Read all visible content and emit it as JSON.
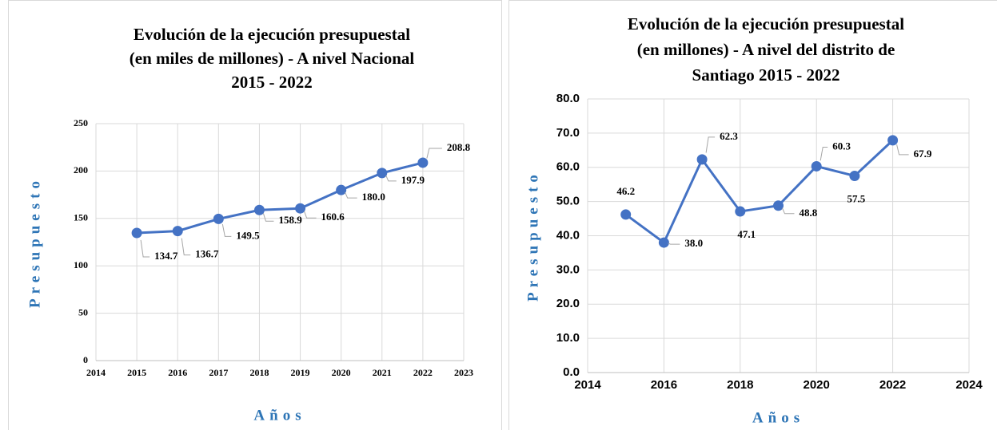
{
  "chart_data": [
    {
      "type": "line",
      "title": [
        "Evolución de la ejecución presupuestal",
        "(en miles de millones) - A nivel Nacional",
        "2015 - 2022"
      ],
      "x_label": "Años",
      "y_label": "Presupuesto",
      "x": [
        2015,
        2016,
        2017,
        2018,
        2019,
        2020,
        2021,
        2022
      ],
      "series": [
        {
          "name": "Presupuesto",
          "color": "#4472c4",
          "values": [
            134.7,
            136.7,
            149.5,
            158.9,
            160.6,
            180.0,
            197.9,
            208.8
          ],
          "value_labels": [
            "134.7",
            "136.7",
            "149.5",
            "158.9",
            "160.6",
            "180.0",
            "197.9",
            "208.8"
          ]
        }
      ],
      "xlim": [
        2014,
        2023
      ],
      "xticks": [
        2014,
        2015,
        2016,
        2017,
        2018,
        2019,
        2020,
        2021,
        2022,
        2023
      ],
      "ylim": [
        0,
        250
      ],
      "yticks": [
        0,
        50,
        100,
        150,
        200,
        250
      ],
      "grid": true
    },
    {
      "type": "line",
      "title": [
        "Evolución de la ejecución presupuestal",
        "(en millones) - A nivel del distrito de",
        "Santiago 2015 - 2022"
      ],
      "x_label": "Años",
      "y_label": "Presupuesto",
      "x": [
        2015,
        2016,
        2017,
        2018,
        2019,
        2020,
        2021,
        2022
      ],
      "series": [
        {
          "name": "Presupuesto",
          "color": "#4472c4",
          "values": [
            46.2,
            38.0,
            62.3,
            47.1,
            48.8,
            60.3,
            57.5,
            67.9
          ],
          "value_labels": [
            "46.2",
            "38.0",
            "62.3",
            "47.1",
            "48.8",
            "60.3",
            "57.5",
            "67.9"
          ]
        }
      ],
      "xlim": [
        2014,
        2024
      ],
      "xticks": [
        2014,
        2016,
        2018,
        2020,
        2022,
        2024
      ],
      "ylim": [
        0,
        80
      ],
      "yticks": [
        {
          "value": 0,
          "label": "0.0"
        },
        {
          "value": 10,
          "label": "10.0"
        },
        {
          "value": 20,
          "label": "20.0"
        },
        {
          "value": 30,
          "label": "30.0"
        },
        {
          "value": 40,
          "label": "40.0"
        },
        {
          "value": 50,
          "label": "50.0"
        },
        {
          "value": 60,
          "label": "60.0"
        },
        {
          "value": 70,
          "label": "70.0"
        },
        {
          "value": 80,
          "label": "80.0"
        }
      ],
      "grid": true
    }
  ]
}
